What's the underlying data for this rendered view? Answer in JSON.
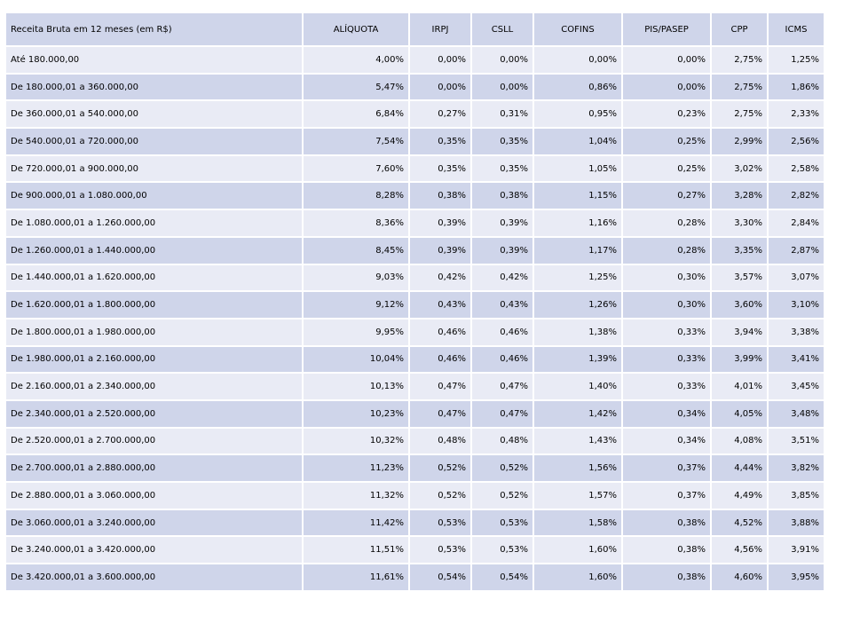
{
  "headers": [
    "Receita Bruta em 12 meses (em R$)",
    "ALÍQUOTA",
    "IRPJ",
    "CSLL",
    "COFINS",
    "PIS/PASEP",
    "CPP",
    "ICMS"
  ],
  "rows": [
    [
      "Até 180.000,00",
      "4,00%",
      "0,00%",
      "0,00%",
      "0,00%",
      "0,00%",
      "2,75%",
      "1,25%"
    ],
    [
      "De 180.000,01 a 360.000,00",
      "5,47%",
      "0,00%",
      "0,00%",
      "0,86%",
      "0,00%",
      "2,75%",
      "1,86%"
    ],
    [
      "De 360.000,01 a 540.000,00",
      "6,84%",
      "0,27%",
      "0,31%",
      "0,95%",
      "0,23%",
      "2,75%",
      "2,33%"
    ],
    [
      "De 540.000,01 a 720.000,00",
      "7,54%",
      "0,35%",
      "0,35%",
      "1,04%",
      "0,25%",
      "2,99%",
      "2,56%"
    ],
    [
      "De 720.000,01 a 900.000,00",
      "7,60%",
      "0,35%",
      "0,35%",
      "1,05%",
      "0,25%",
      "3,02%",
      "2,58%"
    ],
    [
      "De 900.000,01 a 1.080.000,00",
      "8,28%",
      "0,38%",
      "0,38%",
      "1,15%",
      "0,27%",
      "3,28%",
      "2,82%"
    ],
    [
      "De 1.080.000,01 a 1.260.000,00",
      "8,36%",
      "0,39%",
      "0,39%",
      "1,16%",
      "0,28%",
      "3,30%",
      "2,84%"
    ],
    [
      "De 1.260.000,01 a 1.440.000,00",
      "8,45%",
      "0,39%",
      "0,39%",
      "1,17%",
      "0,28%",
      "3,35%",
      "2,87%"
    ],
    [
      "De 1.440.000,01 a 1.620.000,00",
      "9,03%",
      "0,42%",
      "0,42%",
      "1,25%",
      "0,30%",
      "3,57%",
      "3,07%"
    ],
    [
      "De 1.620.000,01 a 1.800.000,00",
      "9,12%",
      "0,43%",
      "0,43%",
      "1,26%",
      "0,30%",
      "3,60%",
      "3,10%"
    ],
    [
      "De 1.800.000,01 a 1.980.000,00",
      "9,95%",
      "0,46%",
      "0,46%",
      "1,38%",
      "0,33%",
      "3,94%",
      "3,38%"
    ],
    [
      "De 1.980.000,01 a 2.160.000,00",
      "10,04%",
      "0,46%",
      "0,46%",
      "1,39%",
      "0,33%",
      "3,99%",
      "3,41%"
    ],
    [
      "De 2.160.000,01 a 2.340.000,00",
      "10,13%",
      "0,47%",
      "0,47%",
      "1,40%",
      "0,33%",
      "4,01%",
      "3,45%"
    ],
    [
      "De 2.340.000,01 a 2.520.000,00",
      "10,23%",
      "0,47%",
      "0,47%",
      "1,42%",
      "0,34%",
      "4,05%",
      "3,48%"
    ],
    [
      "De 2.520.000,01 a 2.700.000,00",
      "10,32%",
      "0,48%",
      "0,48%",
      "1,43%",
      "0,34%",
      "4,08%",
      "3,51%"
    ],
    [
      "De 2.700.000,01 a 2.880.000,00",
      "11,23%",
      "0,52%",
      "0,52%",
      "1,56%",
      "0,37%",
      "4,44%",
      "3,82%"
    ],
    [
      "De 2.880.000,01 a 3.060.000,00",
      "11,32%",
      "0,52%",
      "0,52%",
      "1,57%",
      "0,37%",
      "4,49%",
      "3,85%"
    ],
    [
      "De 3.060.000,01 a 3.240.000,00",
      "11,42%",
      "0,53%",
      "0,53%",
      "1,58%",
      "0,38%",
      "4,52%",
      "3,88%"
    ],
    [
      "De 3.240.000,01 a 3.420.000,00",
      "11,51%",
      "0,53%",
      "0,53%",
      "1,60%",
      "0,38%",
      "4,56%",
      "3,91%"
    ],
    [
      "De 3.420.000,01 a 3.600.000,00",
      "11,61%",
      "0,54%",
      "0,54%",
      "1,60%",
      "0,38%",
      "4,60%",
      "3,95%"
    ]
  ]
}
